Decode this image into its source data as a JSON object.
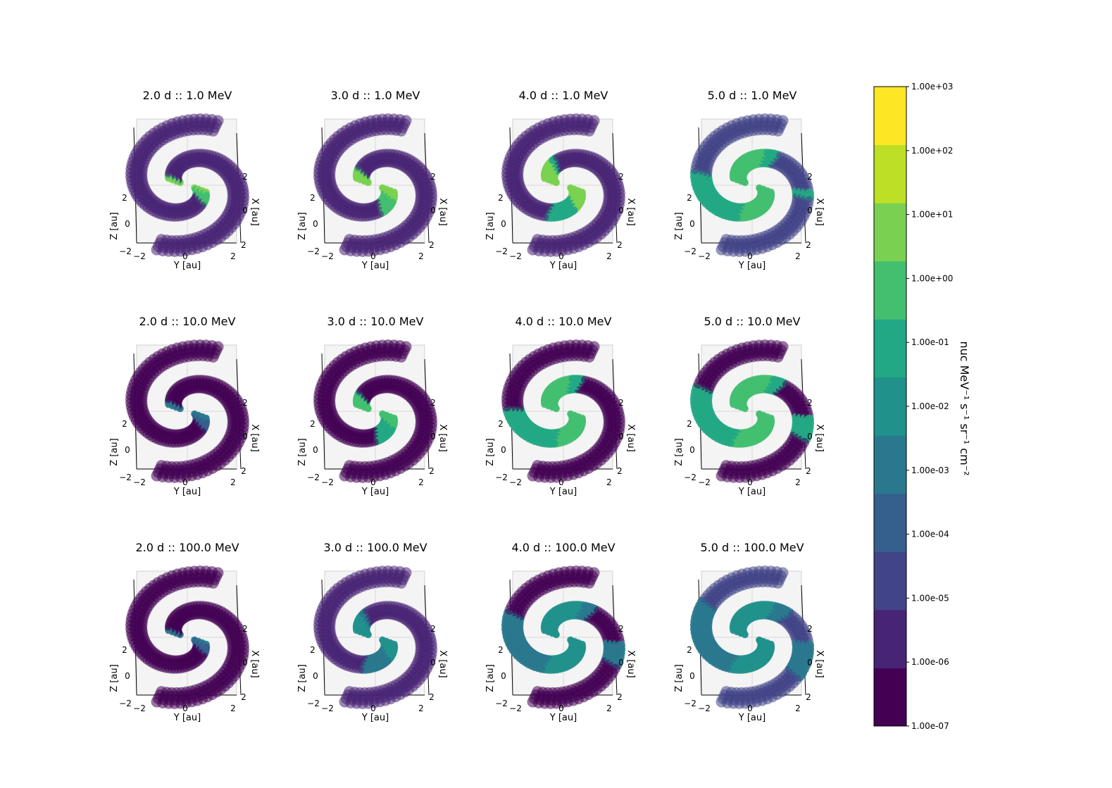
{
  "chart_data": {
    "type": "heatmap",
    "layout": {
      "rows": 3,
      "cols": 4
    },
    "days": [
      2.0,
      3.0,
      4.0,
      5.0
    ],
    "energies_mev": [
      1.0,
      10.0,
      100.0
    ],
    "panels": [
      {
        "title": "2.0 d :: 1.0 MeV",
        "spread": 0.06,
        "level_log10": 1.2,
        "base_log10": -5.6
      },
      {
        "title": "3.0 d :: 1.0 MeV",
        "spread": 0.17,
        "level_log10": 1.3,
        "base_log10": -5.5
      },
      {
        "title": "4.0 d :: 1.0 MeV",
        "spread": 0.32,
        "level_log10": 1.0,
        "base_log10": -5.3
      },
      {
        "title": "5.0 d :: 1.0 MeV",
        "spread": 0.65,
        "level_log10": 0.6,
        "base_log10": -5.0
      },
      {
        "title": "2.0 d :: 10.0 MeV",
        "spread": 0.07,
        "level_log10": -2.8,
        "base_log10": -6.6
      },
      {
        "title": "3.0 d :: 10.0 MeV",
        "spread": 0.2,
        "level_log10": 0.6,
        "base_log10": -6.6
      },
      {
        "title": "4.0 d :: 10.0 MeV",
        "spread": 0.6,
        "level_log10": 0.2,
        "base_log10": -6.6
      },
      {
        "title": "5.0 d :: 10.0 MeV",
        "spread": 0.7,
        "level_log10": 0.7,
        "base_log10": -6.4
      },
      {
        "title": "2.0 d :: 100.0 MeV",
        "spread": 0.05,
        "level_log10": -2.3,
        "base_log10": -6.7
      },
      {
        "title": "3.0 d :: 100.0 MeV",
        "spread": 0.3,
        "level_log10": -1.6,
        "base_log10": -5.4
      },
      {
        "title": "4.0 d :: 100.0 MeV",
        "spread": 0.7,
        "level_log10": -1.8,
        "base_log10": -6.2
      },
      {
        "title": "5.0 d :: 100.0 MeV",
        "spread": 0.75,
        "level_log10": -1.7,
        "base_log10": -4.7
      }
    ],
    "axes": {
      "xlabel": "Y [au]",
      "ylabel": "Z [au]",
      "zlabel": "X [au]",
      "xticks": [
        "−2",
        "0",
        "2"
      ],
      "yticks": [
        "0",
        "2"
      ],
      "zticks": [
        "−2",
        "2"
      ],
      "z_side_ticks": [
        "2",
        "0",
        "2"
      ],
      "xlim": [
        -2,
        2
      ],
      "ylim": [
        -2,
        2
      ],
      "zlim": [
        -2,
        2
      ]
    },
    "colorbar": {
      "scale": "log",
      "colormap": "viridis",
      "min": 1e-07,
      "max": 1000,
      "ticks": [
        "1.00e+03",
        "1.00e+02",
        "1.00e+01",
        "1.00e+00",
        "1.00e-01",
        "1.00e-02",
        "1.00e-03",
        "1.00e-04",
        "1.00e-05",
        "1.00e-06",
        "1.00e-07"
      ],
      "colors": [
        "#440154",
        "#482475",
        "#414487",
        "#355f8d",
        "#2a788e",
        "#21918c",
        "#22a884",
        "#44bf70",
        "#7ad151",
        "#bddf26",
        "#fde725"
      ],
      "label": "nuc MeV⁻¹ s⁻¹ sr⁻¹ cm⁻²"
    }
  }
}
